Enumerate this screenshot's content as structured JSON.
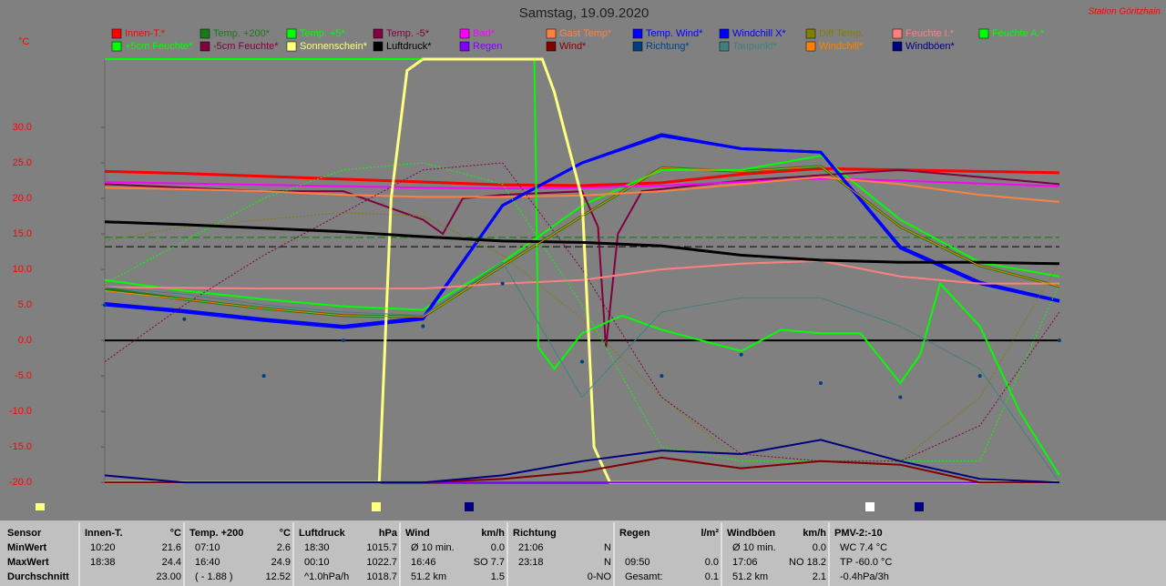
{
  "header": {
    "title": "Samstag, 19.09.2020",
    "station": "Station Göritzhain",
    "unit": "°C"
  },
  "chart_data": {
    "type": "line",
    "xlim": [
      0,
      24
    ],
    "ylim": [
      -20.1,
      39.6
    ],
    "x": [
      0,
      2,
      4,
      6,
      8,
      10,
      12,
      14,
      16,
      18,
      20,
      22,
      24
    ],
    "yticks": [
      {
        "value": 30,
        "label": "30.0"
      },
      {
        "value": 25,
        "label": "25.0"
      },
      {
        "value": 20,
        "label": "20.0"
      },
      {
        "value": 15,
        "label": "15.0"
      },
      {
        "value": 10,
        "label": "10.0"
      },
      {
        "value": 5,
        "label": "5.0"
      },
      {
        "value": 0,
        "label": "0.0"
      },
      {
        "value": -5,
        "label": "-5.0"
      },
      {
        "value": -10,
        "label": "-10.0"
      },
      {
        "value": -15,
        "label": "-15.0"
      },
      {
        "value": -20,
        "label": "-20.0"
      }
    ],
    "ref_lines": [
      {
        "value": 14.5,
        "color": "#008000"
      },
      {
        "value": 13.2,
        "color": "#000000"
      }
    ],
    "series": [
      {
        "name": "Innen-T.*",
        "color": "#ff0000",
        "line_width": 3,
        "values": [
          23.8,
          23.5,
          23.1,
          22.7,
          22.3,
          21.9,
          21.8,
          22.2,
          23.4,
          24.2,
          24,
          23.8,
          23.6
        ]
      },
      {
        "name": "Temp. +200*",
        "color": "#1a7a1a",
        "line_width": 3,
        "values": [
          7.3,
          5.8,
          4.5,
          3.5,
          3.3,
          10.5,
          17.5,
          24.3,
          23.8,
          24.5,
          16,
          10.5,
          7.6
        ]
      },
      {
        "name": "Temp. +5*",
        "color": "#00ff00",
        "line_width": 2,
        "values": [
          8.5,
          7,
          5.8,
          4.8,
          4.3,
          11,
          19,
          24,
          24,
          26,
          17,
          11,
          9
        ]
      },
      {
        "name": "Temp. -5*",
        "color": "#800040",
        "line_width": 2,
        "x": [
          0,
          4,
          6,
          8,
          8.5,
          9,
          10,
          12,
          12.4,
          12.6,
          12.9,
          13.5,
          16,
          20,
          24
        ],
        "values": [
          22,
          21,
          21,
          17,
          15,
          20,
          20.5,
          21,
          16,
          -1,
          15,
          21,
          22.5,
          24,
          22
        ]
      },
      {
        "name": "Bad*",
        "color": "#ff00ff",
        "line_width": 2,
        "values": [
          22.3,
          22.1,
          21.9,
          21.7,
          21.5,
          21.4,
          21.5,
          21.8,
          22.3,
          22.8,
          22.5,
          22.1,
          21.7
        ]
      },
      {
        "name": "Gast Temp*",
        "color": "#ff8040",
        "line_width": 2,
        "values": [
          21.5,
          21.3,
          21,
          20.5,
          20.2,
          20.2,
          20.4,
          21,
          22,
          23,
          22,
          20.5,
          19.5
        ]
      },
      {
        "name": "Temp. Wind*",
        "color": "#0000ff",
        "line_width": 3,
        "values": [
          5.2,
          4.2,
          3,
          2,
          3.2,
          19,
          25,
          28.8,
          27,
          26.5,
          13.2,
          8.2,
          5.6
        ]
      },
      {
        "name": "Windchill X*",
        "color": "#0000ff",
        "line_width": 3,
        "values": [
          5,
          4,
          2.8,
          1.8,
          3,
          19,
          25,
          29,
          27,
          26.5,
          13,
          8,
          5.5
        ]
      },
      {
        "name": "Diff Temp.",
        "color": "#808000",
        "line_width": 1,
        "dash": "2,2",
        "values": [
          14,
          16,
          17,
          18,
          17.5,
          12,
          3,
          -8,
          -17,
          -17,
          -17,
          -8,
          11
        ]
      },
      {
        "name": "Feuchte I.*",
        "color": "#ff8080",
        "line_width": 2,
        "values": [
          7.5,
          7.4,
          7.3,
          7.3,
          7.3,
          8,
          8.5,
          10,
          10.8,
          11.2,
          9,
          8,
          8
        ]
      },
      {
        "name": "Feuchte A.*",
        "color": "#00ff00",
        "line_width": 1,
        "dash": "2,2",
        "values": [
          8,
          14,
          20,
          24,
          25,
          22,
          5,
          -15,
          -17,
          -17,
          -17,
          -17,
          8
        ]
      },
      {
        "name": "+5cm Feuchte*",
        "color": "#00ff00",
        "line_width": 2,
        "x": [
          0,
          10.8,
          10.9,
          11.3,
          12,
          13,
          14,
          15,
          16,
          17,
          18,
          19,
          20,
          20.5,
          21,
          22,
          23,
          24
        ],
        "values": [
          39.6,
          39.6,
          -1,
          -4,
          1,
          3.5,
          1.5,
          0,
          -1.5,
          1.5,
          1,
          1,
          -6,
          -2,
          8,
          2,
          -10,
          -19
        ]
      },
      {
        "name": "-5cm Feuchte*",
        "color": "#800040",
        "line_width": 1,
        "dash": "2,2",
        "values": [
          -3,
          5,
          12,
          18,
          24,
          25,
          10,
          -8,
          -16,
          -17,
          -17,
          -12,
          4
        ]
      },
      {
        "name": "Sonnenschein*",
        "color": "#ffff80",
        "line_width": 3,
        "x": [
          0,
          6.9,
          7.2,
          7.6,
          8,
          11,
          11.3,
          12,
          12.3,
          12.7,
          24
        ],
        "values": [
          -20,
          -20,
          20,
          38,
          39.6,
          39.6,
          35,
          20,
          -15,
          -20,
          -20
        ]
      },
      {
        "name": "Luftdruck*",
        "color": "#000000",
        "line_width": 3,
        "values": [
          16.7,
          16.3,
          15.8,
          15.3,
          14.6,
          14,
          13.8,
          13.3,
          12,
          11.3,
          11,
          11,
          10.8
        ]
      },
      {
        "name": "Regen",
        "color": "#8000ff",
        "line_width": 2,
        "values": [
          -20,
          -20,
          -20,
          -20,
          -20,
          -20,
          -20,
          -20,
          -20,
          -20,
          -20,
          -20,
          -20
        ]
      },
      {
        "name": "Wind*",
        "color": "#800000",
        "line_width": 2,
        "values": [
          -20,
          -20,
          -20,
          -20,
          -20,
          -19.5,
          -18.5,
          -16.5,
          -18,
          -17,
          -17.5,
          -20,
          -20
        ]
      },
      {
        "name": "Richtung*",
        "color": "#004080",
        "marker": "dots",
        "values": [
          5,
          3,
          -5,
          0,
          2,
          8,
          -3,
          -5,
          -2,
          -6,
          -8,
          -5,
          0
        ]
      },
      {
        "name": "Taupunkt*",
        "color": "#408080",
        "line_width": 1,
        "values": [
          7.5,
          6.5,
          5,
          4,
          3.5,
          11,
          -8,
          4,
          6,
          6,
          2,
          -4,
          -20
        ]
      },
      {
        "name": "Windchill*",
        "color": "#ff8000",
        "line_width": 1,
        "values": [
          7,
          5.8,
          4.5,
          3.5,
          3.3,
          10.5,
          17.5,
          24.3,
          23.8,
          24.5,
          16,
          10.5,
          7.6
        ]
      },
      {
        "name": "Windböen*",
        "color": "#000080",
        "line_width": 2,
        "values": [
          -19,
          -20,
          -20,
          -20,
          -20,
          -19,
          -17,
          -15.5,
          -16,
          -14,
          -17,
          -19.5,
          -20
        ]
      }
    ]
  },
  "table": {
    "labels": [
      "Sensor",
      "MinWert",
      "MaxWert",
      "Durchschnitt"
    ],
    "groups": [
      {
        "name": "Innen-T.",
        "unit": "°C",
        "rows": [
          {
            "l": "10:20",
            "r": "21.6"
          },
          {
            "l": "18:38",
            "r": "24.4"
          },
          {
            "r": "23.00"
          }
        ]
      },
      {
        "name": "Temp. +200",
        "unit": "°C",
        "rows": [
          {
            "l": "07:10",
            "r": "2.6"
          },
          {
            "l": "16:40",
            "r": "24.9"
          },
          {
            "l": "( - 1.88 )",
            "r": "12.52"
          }
        ]
      },
      {
        "name": "Luftdruck",
        "unit": "hPa",
        "rows": [
          {
            "l": "18:30",
            "r": "1015.7"
          },
          {
            "l": "00:10",
            "r": "1022.7"
          },
          {
            "l": "^1.0hPa/h",
            "r": "1018.7"
          }
        ]
      },
      {
        "name": "Wind",
        "unit": "km/h",
        "rows": [
          {
            "l": "Ø 10 min.",
            "r": "0.0"
          },
          {
            "l": "16:46",
            "r": "SO 7.7"
          },
          {
            "l": "51.2 km",
            "r": "1.5"
          }
        ]
      },
      {
        "name": "Richtung",
        "rows": [
          {
            "l": "21:06",
            "r": "N"
          },
          {
            "l": "23:18",
            "r": "N"
          },
          {
            "r": "0-NO"
          }
        ]
      },
      {
        "name": "Regen",
        "unit": "l/m²",
        "rows": [
          {},
          {
            "l": "09:50",
            "r": "0.0"
          },
          {
            "l": "Gesamt:",
            "r": "0.1"
          }
        ]
      },
      {
        "name": "Windböen",
        "unit": "km/h",
        "rows": [
          {
            "l": "Ø 10 min.",
            "r": "0.0"
          },
          {
            "l": "17:06",
            "r": "NO 18.2"
          },
          {
            "l": "51.2 km",
            "r": "2.1"
          }
        ]
      },
      {
        "name": "PMV-2:-10",
        "rows": [
          {
            "l": "WC 7.4 °C"
          },
          {
            "l": "TP -60.0 °C"
          },
          {
            "l": "-0.4hPa/3h"
          }
        ]
      }
    ]
  }
}
